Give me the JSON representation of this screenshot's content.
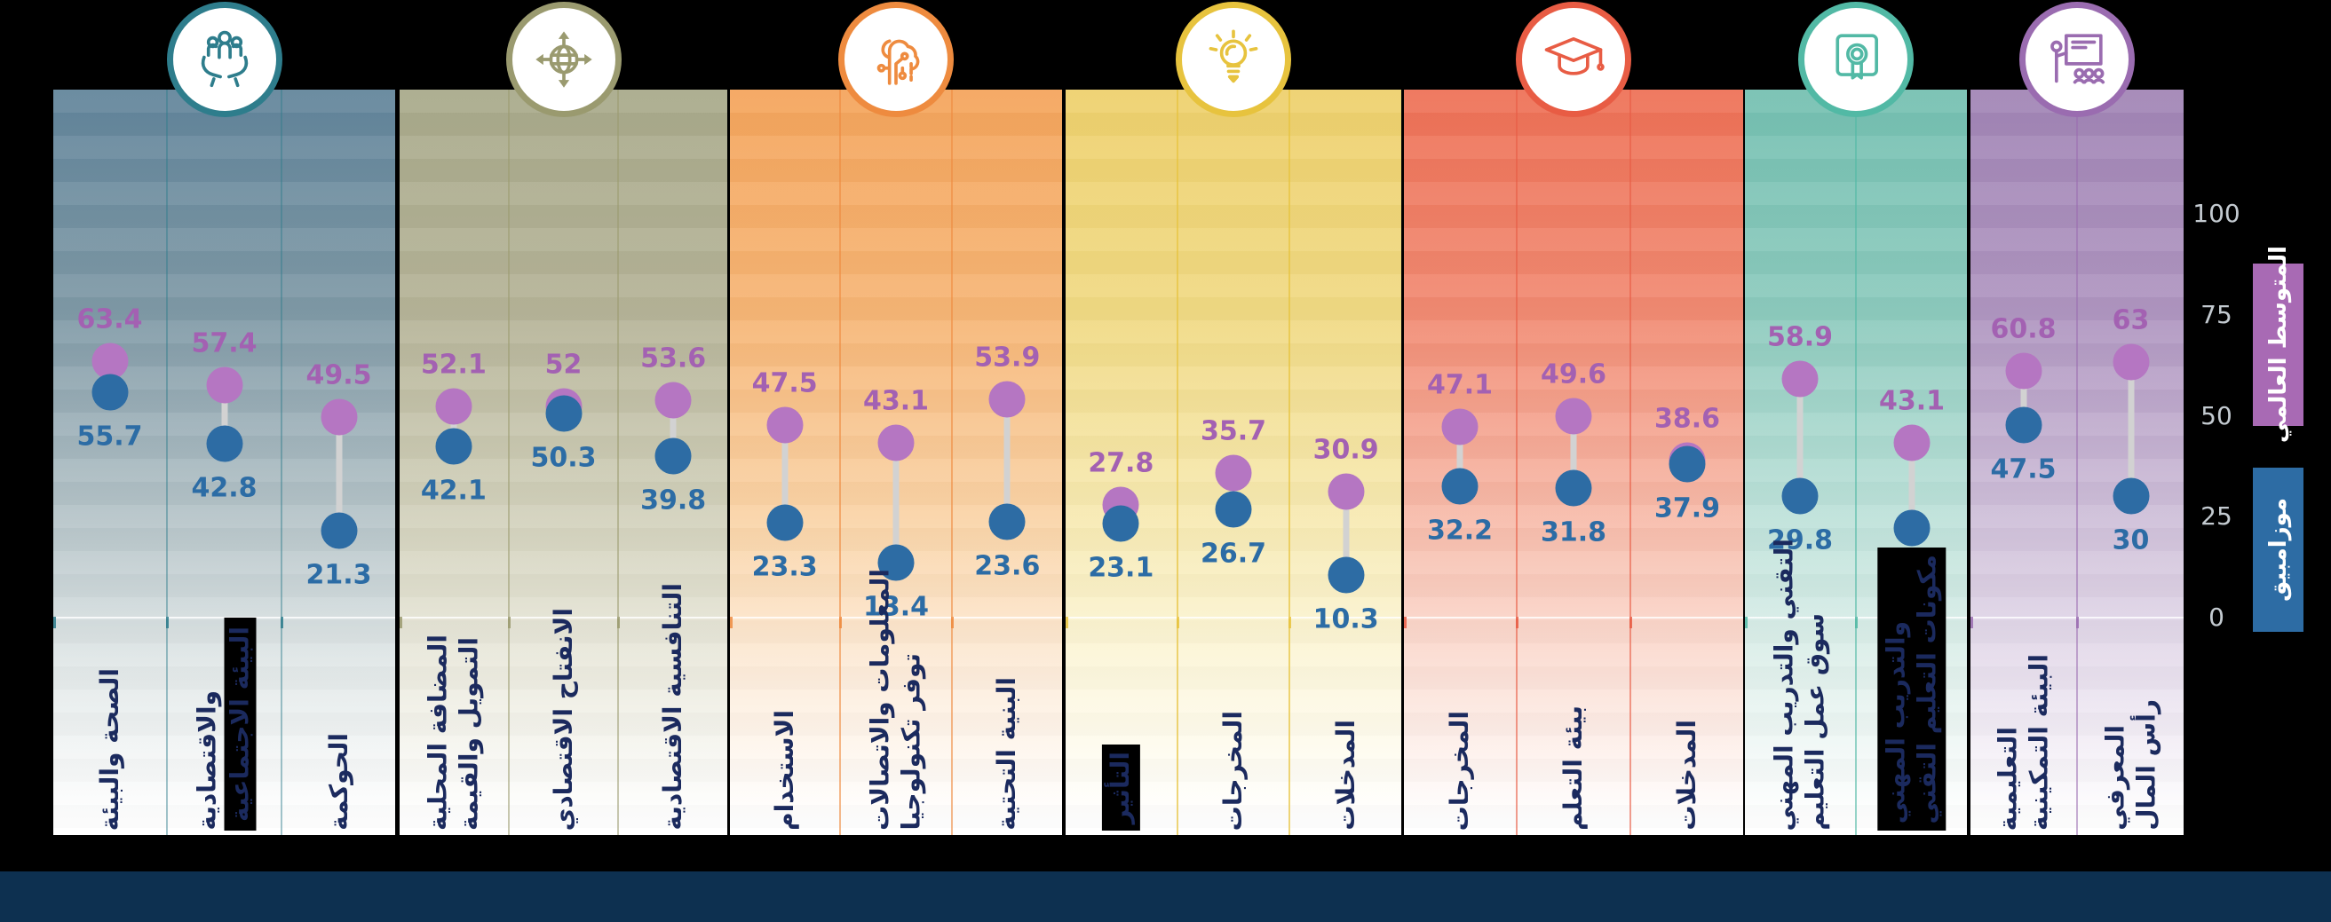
{
  "legend": {
    "global": {
      "label": "المتوسط العالمي",
      "color": "#a86ab4"
    },
    "country": {
      "label": "موزامبيق",
      "color": "#2d6ca4"
    }
  },
  "axis": {
    "ticks": [
      100,
      75,
      50,
      25,
      0
    ]
  },
  "chart_data": {
    "type": "dumbbell",
    "ymin": 0,
    "ymax": 100,
    "series": [
      {
        "name": "المتوسط العالمي",
        "color": "#b576c2"
      },
      {
        "name": "موزامبيق",
        "color": "#2d6ca4"
      }
    ],
    "groups": [
      {
        "icon": "community-care-icon",
        "accent": "#2e7d8c",
        "columns": [
          {
            "label": "الصحة والبيئة",
            "label_lines": [
              "الصحة والبيئة"
            ],
            "global": 63.4,
            "country": 55.7
          },
          {
            "label": "البيئة الاجتماعية والاقتصادية",
            "label_lines": [
              "البيئة الاجتماعية",
              "والاقتصادية"
            ],
            "global": 57.4,
            "country": 42.8,
            "highlight_box": "line1"
          },
          {
            "label": "الحوكمة",
            "label_lines": [
              "الحوكمة"
            ],
            "global": 49.5,
            "country": 21.3
          }
        ]
      },
      {
        "icon": "globe-expansion-icon",
        "accent": "#9a9a6f",
        "columns": [
          {
            "label": "التمويل والقيمة المضافة المحلية",
            "label_lines": [
              "التمويل والقيمة",
              "المضافة المحلية"
            ],
            "global": 52.1,
            "country": 42.1
          },
          {
            "label": "الانفتاح الاقتصادي",
            "label_lines": [
              "الانفتاح الاقتصادي"
            ],
            "global": 52,
            "country": 50.3
          },
          {
            "label": "التنافسية الاقتصادية",
            "label_lines": [
              "التنافسية الاقتصادية"
            ],
            "global": 53.6,
            "country": 39.8
          }
        ]
      },
      {
        "icon": "digital-brain-icon",
        "accent": "#ee8b3f",
        "columns": [
          {
            "label": "الاستخدام",
            "label_lines": [
              "الاستخدام"
            ],
            "global": 47.5,
            "country": 23.3
          },
          {
            "label": "توفر تكنولوجيا المعلومات والاتصالات",
            "label_lines": [
              "توفر تكنولوجيا",
              "المعلومات والاتصالات"
            ],
            "global": 43.1,
            "country": 13.4
          },
          {
            "label": "البنية التحتية",
            "label_lines": [
              "البنية التحتية"
            ],
            "global": 53.9,
            "country": 23.6
          }
        ]
      },
      {
        "icon": "lightbulb-icon",
        "accent": "#e7c33e",
        "columns": [
          {
            "label": "التأثير",
            "label_lines": [
              "التأثير"
            ],
            "global": 27.8,
            "country": 23.1,
            "highlight_box": "all"
          },
          {
            "label": "المخرجات",
            "label_lines": [
              "المخرجات"
            ],
            "global": 35.7,
            "country": 26.7
          },
          {
            "label": "المدخلات",
            "label_lines": [
              "المدخلات"
            ],
            "global": 30.9,
            "country": 10.3
          }
        ]
      },
      {
        "icon": "graduation-cap-icon",
        "accent": "#e85c44",
        "columns": [
          {
            "label": "المخرجات",
            "label_lines": [
              "المخرجات"
            ],
            "global": 47.1,
            "country": 32.2
          },
          {
            "label": "بيئة التعلم",
            "label_lines": [
              "بيئة التعلم"
            ],
            "global": 49.6,
            "country": 31.8
          },
          {
            "label": "المدخلات",
            "label_lines": [
              "المدخلات"
            ],
            "global": 38.6,
            "country": 37.9
          }
        ]
      },
      {
        "icon": "certificate-icon",
        "accent": "#52b9a5",
        "columns": [
          {
            "label": "سوق عمل التعليم التقني والتدريب المهني",
            "label_lines": [
              "سوق عمل التعليم",
              "التقني والتدريب المهني"
            ],
            "global": 58.9,
            "country": 29.8
          },
          {
            "label": "مكونات التعليم التقني والتدريب المهني",
            "label_lines": [
              "مكونات التعليم التقني",
              "والتدريب المهني"
            ],
            "global": 43.1,
            "country": 22,
            "highlight_box": "all"
          }
        ]
      },
      {
        "icon": "classroom-presentation-icon",
        "accent": "#9a6cb0",
        "columns": [
          {
            "label": "البيئة التمكينية التعليمية",
            "label_lines": [
              "البيئة التمكينية",
              "التعليمية"
            ],
            "global": 60.8,
            "country": 47.5
          },
          {
            "label": "رأس المال المعرفي",
            "label_lines": [
              "رأس المال",
              "المعرفي"
            ],
            "global": 63,
            "country": 30
          }
        ]
      }
    ]
  }
}
